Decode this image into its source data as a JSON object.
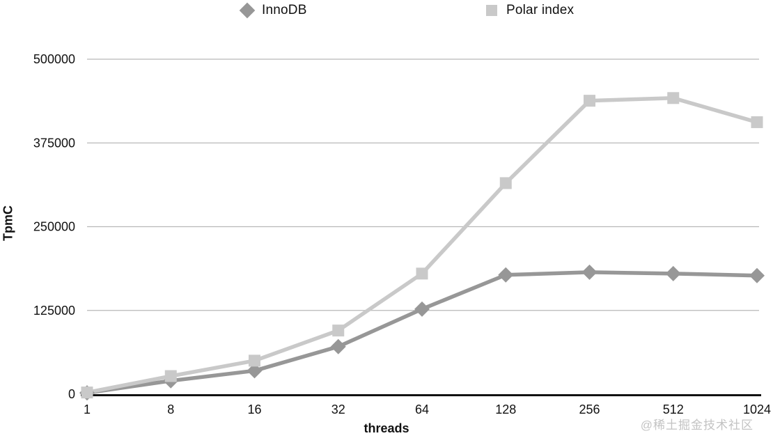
{
  "page": {
    "background": "#ffffff",
    "watermark": "@稀土掘金技术社区"
  },
  "legend": {
    "items": [
      {
        "label": "InnoDB",
        "marker": "diamond-icon",
        "color": "#979797"
      },
      {
        "label": "Polar index",
        "marker": "square-icon",
        "color": "#c9c9c9"
      }
    ]
  },
  "chart_data": {
    "type": "line",
    "title": "",
    "xlabel": "threads",
    "ylabel": "TpmC",
    "categories": [
      "1",
      "8",
      "16",
      "32",
      "64",
      "128",
      "256",
      "512",
      "1024"
    ],
    "series": [
      {
        "name": "InnoDB",
        "marker": "diamond",
        "color": "#979797",
        "values": [
          2000,
          20000,
          35000,
          71000,
          127000,
          178000,
          182000,
          180000,
          177000
        ]
      },
      {
        "name": "Polar index",
        "marker": "square",
        "color": "#c9c9c9",
        "values": [
          2500,
          27000,
          50000,
          95000,
          180000,
          315000,
          438000,
          442000,
          406000
        ]
      }
    ],
    "ylim": [
      0,
      500000
    ],
    "yticks": [
      0,
      125000,
      250000,
      375000,
      500000
    ],
    "grid": true,
    "gridline_color": "#b8b8b8",
    "axis_line_color": "#111111",
    "tick_label_color": "#111111",
    "legend_position": "top"
  }
}
